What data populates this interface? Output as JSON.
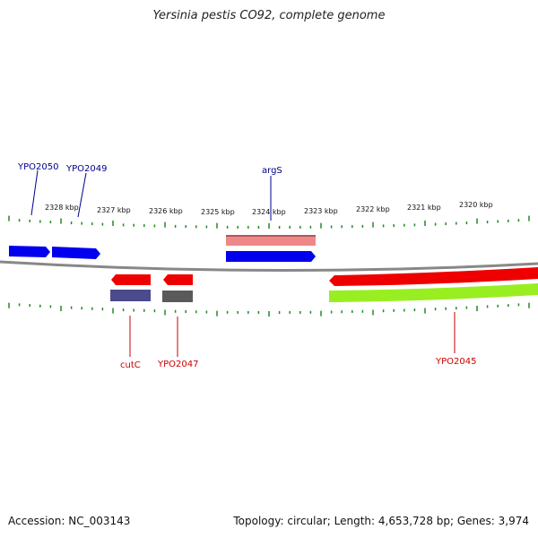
{
  "title": "Yersinia pestis CO92, complete genome",
  "footer": {
    "accession": "Accession: NC_003143",
    "summary": "Topology: circular; Length: 4,653,728 bp; Genes: 3,974"
  },
  "scale_labels": [
    "2328 kbp",
    "2327 kbp",
    "2326 kbp",
    "2325 kbp",
    "2324 kbp",
    "2323 kbp",
    "2322 kbp",
    "2321 kbp",
    "2320 kbp"
  ],
  "gene_labels": {
    "ypo2050": "YPO2050",
    "ypo2049": "YPO2049",
    "args": "argS",
    "cutc": "cutC",
    "ypo2047": "YPO2047",
    "ypo2045": "YPO2045"
  },
  "colors": {
    "forward_gene": "#0000ee",
    "reverse_gene": "#ee0000",
    "forward_label": "#00008b",
    "reverse_label": "#cc0000",
    "pink_feature": "#ee8888",
    "purple_feature": "#4a4a8c",
    "gray_feature": "#5a5a5a",
    "green_feature": "#99ee22",
    "tick": "#228822",
    "backbone": "#888888"
  }
}
